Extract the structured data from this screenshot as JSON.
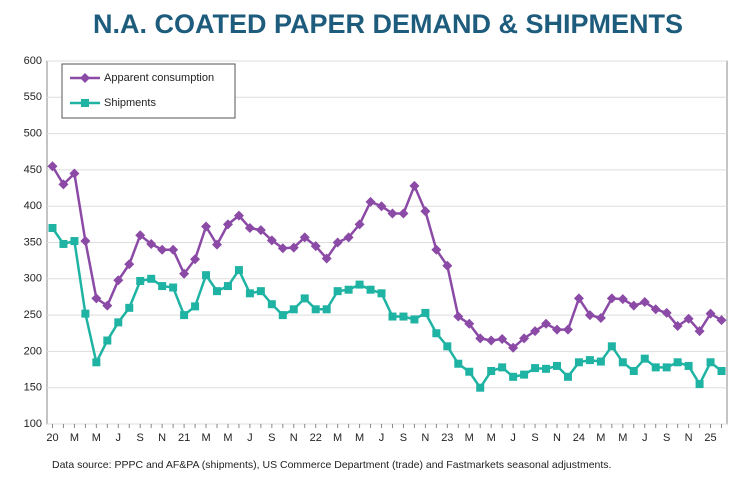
{
  "chart_data": {
    "type": "line",
    "title": "N.A. COATED PAPER DEMAND & SHIPMENTS",
    "note": "Data source: PPPC and AF&PA (shipments), US Commerce Department (trade) and Fastmarkets seasonal adjustments.",
    "categories": [
      "20",
      null,
      "M",
      null,
      "M",
      null,
      "J",
      null,
      "S",
      null,
      "N",
      null,
      "21",
      null,
      "M",
      null,
      "M",
      null,
      "J",
      null,
      "S",
      null,
      "N",
      null,
      "22",
      null,
      "M",
      null,
      "M",
      null,
      "J",
      null,
      "S",
      null,
      "N",
      null,
      "23",
      null,
      "M",
      null,
      "M",
      null,
      "J",
      null,
      "S",
      null,
      "N",
      null,
      "24",
      null,
      "M",
      null,
      "M",
      null,
      "J",
      null,
      "S",
      null,
      "N",
      null,
      "25",
      null
    ],
    "series": [
      {
        "name": "Apparent consumption",
        "color": "#8b4aa6",
        "marker": "diamond",
        "values": [
          455,
          430,
          445,
          352,
          273,
          263,
          298,
          320,
          360,
          348,
          340,
          340,
          307,
          327,
          372,
          347,
          375,
          387,
          370,
          367,
          353,
          342,
          343,
          357,
          345,
          328,
          350,
          357,
          375,
          406,
          400,
          390,
          390,
          428,
          393,
          340,
          318,
          248,
          238,
          218,
          215,
          217,
          205,
          218,
          228,
          238,
          230,
          230,
          273,
          250,
          246,
          273,
          272,
          263,
          268,
          258,
          253,
          235,
          245,
          228,
          252,
          243
        ]
      },
      {
        "name": "Shipments",
        "color": "#1fb3a3",
        "marker": "square",
        "values": [
          370,
          348,
          352,
          252,
          185,
          215,
          240,
          260,
          297,
          300,
          290,
          288,
          250,
          262,
          305,
          283,
          290,
          312,
          280,
          283,
          265,
          250,
          258,
          273,
          258,
          258,
          283,
          285,
          292,
          285,
          280,
          248,
          248,
          244,
          253,
          225,
          207,
          183,
          172,
          150,
          173,
          178,
          165,
          168,
          177,
          176,
          180,
          165,
          185,
          188,
          186,
          207,
          185,
          173,
          190,
          178,
          178,
          185,
          180,
          155,
          185,
          173
        ]
      }
    ],
    "ylim": [
      100,
      600
    ],
    "yticks": [
      100,
      150,
      200,
      250,
      300,
      350,
      400,
      450,
      500,
      550,
      600
    ],
    "grid": true,
    "legend": "top-left"
  }
}
